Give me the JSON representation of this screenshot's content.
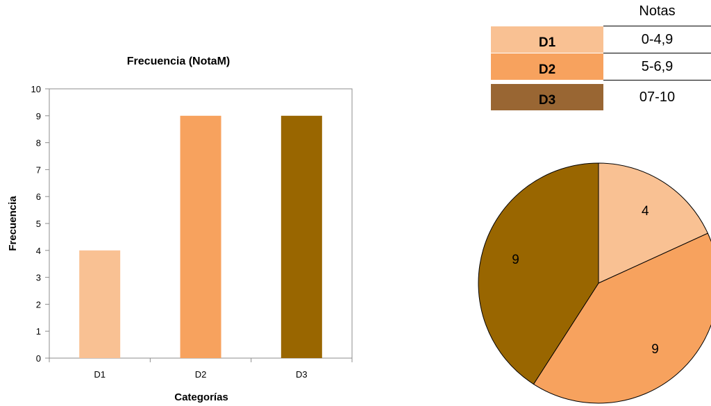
{
  "chart_data": [
    {
      "type": "bar",
      "title": "Frecuencia (NotaM)",
      "xlabel": "Categorías",
      "ylabel": "Frecuencia",
      "categories": [
        "D1",
        "D2",
        "D3"
      ],
      "values": [
        4,
        9,
        9
      ],
      "colors": [
        "#F9C193",
        "#F7A25E",
        "#996600"
      ],
      "ylim": [
        0,
        10
      ],
      "yticks": [
        "0",
        "1",
        "2",
        "3",
        "4",
        "5",
        "6",
        "7",
        "8",
        "9",
        "10"
      ],
      "grid": false
    },
    {
      "type": "pie",
      "categories": [
        "D1",
        "D2",
        "D3"
      ],
      "values": [
        4,
        9,
        9
      ],
      "labels": [
        "4",
        "9",
        "9"
      ],
      "colors": [
        "#F9C193",
        "#F7A25E",
        "#996600"
      ]
    }
  ],
  "legend_table": {
    "header": "Notas",
    "rows": [
      {
        "label": "D1",
        "range": "0-4,9",
        "color": "#F9C193"
      },
      {
        "label": "D2",
        "range": "5-6,9",
        "color": "#F7A25E"
      },
      {
        "label": "D3",
        "range": "07-10",
        "color": "#996633"
      }
    ]
  }
}
